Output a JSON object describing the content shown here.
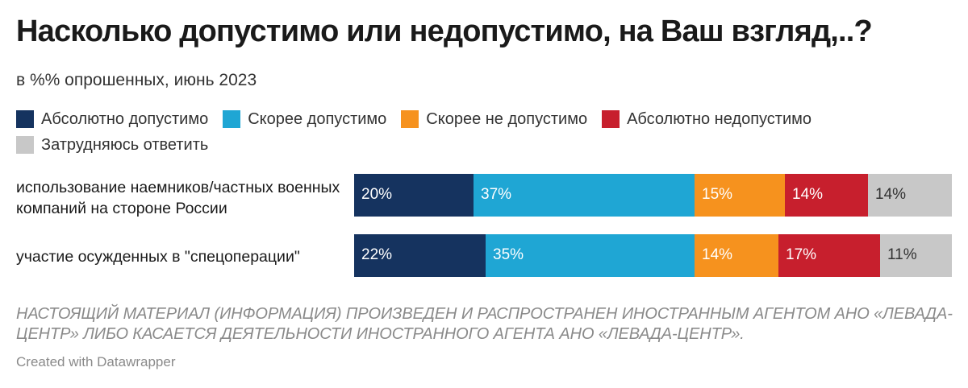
{
  "title": "Насколько допустимо или недопустимо, на Ваш взгляд,..?",
  "subtitle": "в %% опрошенных, июнь 2023",
  "notice": "НАСТОЯЩИЙ МАТЕРИАЛ (ИНФОРМАЦИЯ) ПРОИЗВЕДЕН И РАСПРОСТРАНЕН ИНОСТРАННЫМ АГЕНТОМ АНО «ЛЕВАДА-ЦЕНТР» ЛИБО КАСАЕТСЯ ДЕЯТЕЛЬНОСТИ ИНОСТРАННОГО АГЕНТА АНО «ЛЕВАДА-ЦЕНТР».",
  "credit": "Created with Datawrapper",
  "chart_data": {
    "type": "bar",
    "orientation": "horizontal",
    "stacked": true,
    "title": "Насколько допустимо или недопустимо, на Ваш взгляд,..?",
    "subtitle": "в %% опрошенных, июнь 2023",
    "categories": [
      "использование наемников/частных военных компаний на стороне России",
      "участие осужденных в \"спецоперации\""
    ],
    "series": [
      {
        "name": "Абсолютно допустимо",
        "color": "#15335f",
        "label_color": "#ffffff",
        "values": [
          20,
          22
        ]
      },
      {
        "name": "Скорее допустимо",
        "color": "#1fa6d4",
        "label_color": "#ffffff",
        "values": [
          37,
          35
        ]
      },
      {
        "name": "Скорее не допустимо",
        "color": "#f6921e",
        "label_color": "#ffffff",
        "values": [
          15,
          14
        ]
      },
      {
        "name": "Абсолютно недопустимо",
        "color": "#c71f2d",
        "label_color": "#ffffff",
        "values": [
          14,
          17
        ]
      },
      {
        "name": "Затрудняюсь ответить",
        "color": "#c8c8c8",
        "label_color": "#333333",
        "values": [
          14,
          11
        ]
      }
    ],
    "value_suffix": "%",
    "xlim": [
      0,
      100
    ],
    "legend": "top",
    "grid": false
  }
}
